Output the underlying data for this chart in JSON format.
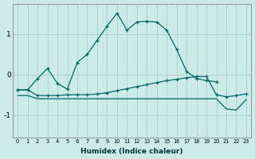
{
  "background_color": "#cceae8",
  "grid_color": "#aacfcc",
  "line_color": "#006666",
  "xlabel": "Humidex (Indice chaleur)",
  "ylabel_ticks": [
    -1,
    0,
    1
  ],
  "xlim": [
    -0.5,
    23.5
  ],
  "ylim": [
    -1.55,
    1.75
  ],
  "x_ticks": [
    0,
    1,
    2,
    3,
    4,
    5,
    6,
    7,
    8,
    9,
    10,
    11,
    12,
    13,
    14,
    15,
    16,
    17,
    18,
    19,
    20,
    21,
    22,
    23
  ],
  "series1_x": [
    0,
    1,
    2,
    3,
    4,
    5,
    6,
    7,
    8,
    9,
    10,
    11,
    12,
    13,
    14,
    15,
    16,
    17,
    18,
    19,
    20
  ],
  "series1_y": [
    -0.38,
    -0.38,
    -0.1,
    0.15,
    -0.22,
    -0.36,
    0.3,
    0.5,
    0.85,
    1.2,
    1.52,
    1.1,
    1.3,
    1.32,
    1.3,
    1.1,
    0.62,
    0.08,
    -0.1,
    -0.15,
    -0.18
  ],
  "series2_x": [
    0,
    1,
    2,
    3,
    4,
    5,
    6,
    7,
    8,
    9,
    10,
    11,
    12,
    13,
    14,
    15,
    16,
    17,
    18,
    19,
    20,
    21,
    22,
    23
  ],
  "series2_y": [
    -0.38,
    -0.38,
    -0.52,
    -0.52,
    -0.52,
    -0.5,
    -0.5,
    -0.5,
    -0.48,
    -0.45,
    -0.4,
    -0.35,
    -0.3,
    -0.25,
    -0.2,
    -0.15,
    -0.12,
    -0.08,
    -0.05,
    -0.05,
    -0.5,
    -0.55,
    -0.52,
    -0.48
  ],
  "series3_x": [
    0,
    1,
    2,
    3,
    4,
    5,
    6,
    7,
    8,
    9,
    10,
    11,
    12,
    13,
    14,
    15,
    16,
    17,
    18,
    19,
    20,
    21,
    22,
    23
  ],
  "series3_y": [
    -0.52,
    -0.52,
    -0.6,
    -0.6,
    -0.6,
    -0.6,
    -0.6,
    -0.6,
    -0.6,
    -0.6,
    -0.6,
    -0.6,
    -0.6,
    -0.6,
    -0.6,
    -0.6,
    -0.6,
    -0.6,
    -0.6,
    -0.6,
    -0.6,
    -0.85,
    -0.88,
    -0.62
  ]
}
